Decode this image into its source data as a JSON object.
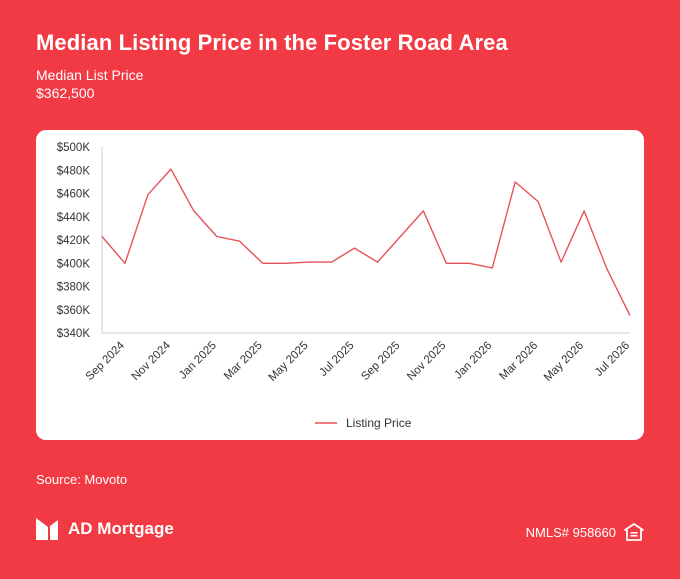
{
  "header": {
    "title": "Median Listing Price in the Foster Road Area",
    "subtitle_label": "Median List Price",
    "subtitle_value": "$362,500"
  },
  "footer": {
    "source": "Source: Movoto",
    "brand": "AD Mortgage",
    "nmls": "NMLS# 958660",
    "logo_icon": "ad-mortgage-logo-icon",
    "housing_icon": "equal-housing-icon"
  },
  "colors": {
    "background": "#f23a45",
    "line": "#e8525a",
    "card": "#ffffff",
    "text": "#ffffff"
  },
  "chart_data": {
    "type": "line",
    "x_tick_labels": [
      "Sep 2024",
      "Nov 2024",
      "Jan 2025",
      "Mar 2025",
      "May 2025",
      "Jul 2025",
      "Sep 2025",
      "Nov 2025",
      "Jan 2026",
      "Mar 2026",
      "May 2026",
      "Jul 2026"
    ],
    "y_tick_labels": [
      "$340K",
      "$360K",
      "$380K",
      "$400K",
      "$420K",
      "$440K",
      "$460K",
      "$480K",
      "$500K"
    ],
    "ylim": [
      340000,
      500000
    ],
    "x": [
      "2024-08",
      "2024-09",
      "2024-10",
      "2024-11",
      "2024-12",
      "2025-01",
      "2025-02",
      "2025-03",
      "2025-04",
      "2025-05",
      "2025-06",
      "2025-07",
      "2025-08",
      "2025-09",
      "2025-10",
      "2025-11",
      "2025-12",
      "2026-01",
      "2026-02",
      "2026-03",
      "2026-04",
      "2026-05",
      "2026-06",
      "2026-07"
    ],
    "series": [
      {
        "name": "Listing Price",
        "values": [
          423000,
          400000,
          459000,
          481000,
          445000,
          423000,
          419000,
          400000,
          400000,
          401000,
          401000,
          413000,
          401000,
          423000,
          445000,
          400000,
          400000,
          396000,
          470000,
          453000,
          401000,
          445000,
          395000,
          355000
        ]
      }
    ],
    "legend_position": "bottom",
    "grid": false
  }
}
